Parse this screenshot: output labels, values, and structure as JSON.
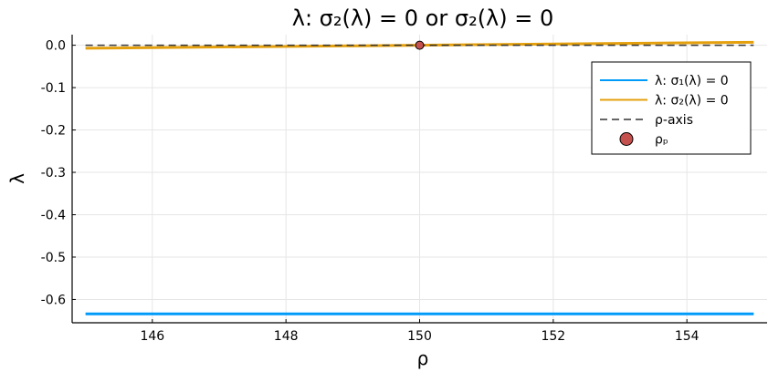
{
  "chart_data": {
    "type": "line",
    "title": "λ: σ₂(λ) = 0 or σ₂(λ) = 0",
    "xlabel": "ρ",
    "ylabel": "λ",
    "xlim": [
      144.8,
      155.2
    ],
    "ylim": [
      -0.655,
      0.025
    ],
    "x_ticks": [
      146,
      148,
      150,
      152,
      154
    ],
    "x_tick_labels": [
      "146",
      "148",
      "150",
      "152",
      "154"
    ],
    "y_ticks": [
      0,
      -0.1,
      -0.2,
      -0.3,
      -0.4,
      -0.5,
      -0.6
    ],
    "y_tick_labels": [
      "0.0",
      "-0.1",
      "-0.2",
      "-0.3",
      "-0.4",
      "-0.5",
      "-0.6"
    ],
    "grid": true,
    "legend_position": "top-right",
    "series": [
      {
        "name": "λ: σ₁(λ) = 0",
        "kind": "line",
        "color": "#009af9",
        "x": [
          145,
          155
        ],
        "y": [
          -0.634,
          -0.634
        ]
      },
      {
        "name": "λ: σ₂(λ) = 0",
        "kind": "line",
        "color": "#e5a00d",
        "x": [
          145,
          155
        ],
        "y": [
          -0.007,
          0.007
        ]
      },
      {
        "name": "ρ-axis",
        "kind": "dashed",
        "color": "#333333",
        "x": [
          145,
          155
        ],
        "y": [
          0,
          0
        ]
      },
      {
        "name": "ρₚ",
        "kind": "marker",
        "color": "#c4514e",
        "x": [
          150
        ],
        "y": [
          0
        ]
      }
    ]
  }
}
